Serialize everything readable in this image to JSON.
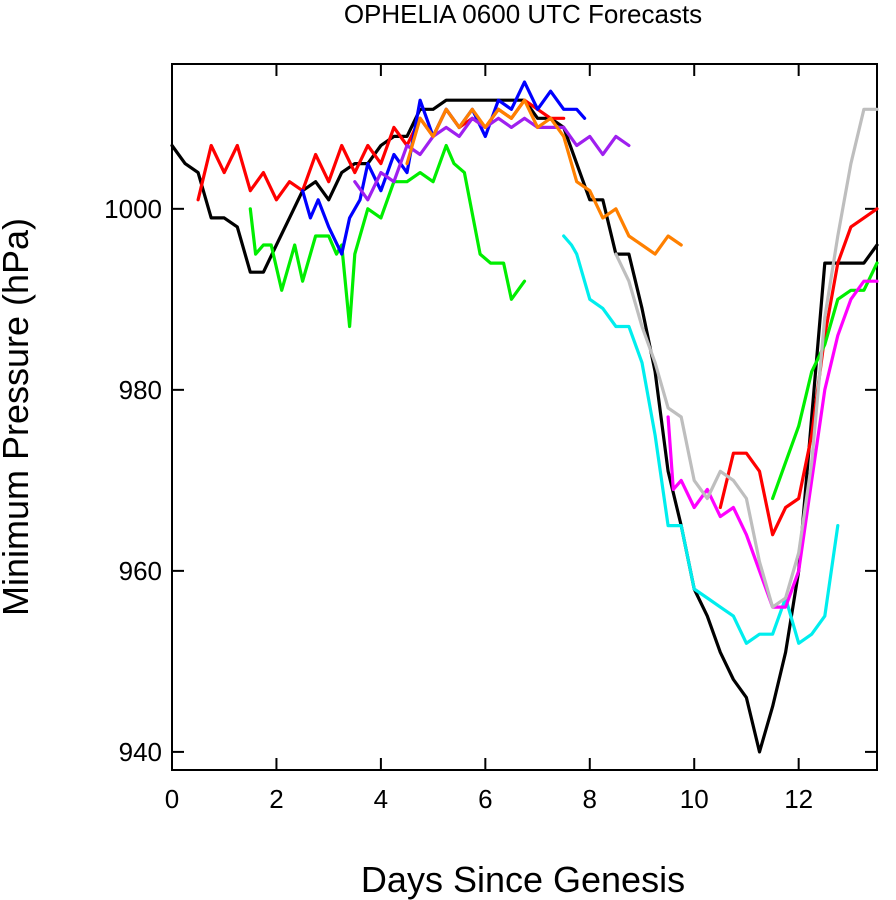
{
  "chart_data": {
    "type": "line",
    "title": "OPHELIA 0600 UTC Forecasts",
    "xlabel": "Days Since Genesis",
    "ylabel": "Minimum Pressure (hPa)",
    "xlim": [
      0,
      13.5
    ],
    "ylim": [
      938,
      1016
    ],
    "xticks": [
      0,
      2,
      4,
      6,
      8,
      10,
      12
    ],
    "yticks": [
      940,
      960,
      980,
      1000
    ],
    "grid": false,
    "legend": "none",
    "series": [
      {
        "color": "#000000",
        "points": [
          [
            0,
            1007
          ],
          [
            0.25,
            1005
          ],
          [
            0.5,
            1004
          ],
          [
            0.75,
            999
          ],
          [
            1,
            999
          ],
          [
            1.25,
            998
          ],
          [
            1.5,
            993
          ],
          [
            1.75,
            993
          ],
          [
            2,
            996
          ],
          [
            2.25,
            999
          ],
          [
            2.5,
            1002
          ],
          [
            2.75,
            1003
          ],
          [
            3,
            1001
          ],
          [
            3.25,
            1004
          ],
          [
            3.5,
            1005
          ],
          [
            3.75,
            1005
          ],
          [
            4,
            1007
          ],
          [
            4.25,
            1008
          ],
          [
            4.5,
            1008
          ],
          [
            4.75,
            1011
          ],
          [
            5,
            1011
          ],
          [
            5.25,
            1012
          ],
          [
            5.5,
            1012
          ],
          [
            5.75,
            1012
          ],
          [
            6,
            1012
          ],
          [
            6.25,
            1012
          ],
          [
            6.5,
            1012
          ],
          [
            6.75,
            1012
          ],
          [
            7,
            1010
          ],
          [
            7.25,
            1010
          ],
          [
            7.5,
            1009
          ],
          [
            7.75,
            1005
          ],
          [
            8,
            1001
          ],
          [
            8.25,
            1001
          ],
          [
            8.5,
            995
          ],
          [
            8.75,
            995
          ],
          [
            9,
            989
          ],
          [
            9.25,
            982
          ],
          [
            9.5,
            971
          ],
          [
            9.75,
            965
          ],
          [
            10,
            958
          ],
          [
            10.25,
            955
          ],
          [
            10.5,
            951
          ],
          [
            10.75,
            948
          ],
          [
            11,
            946
          ],
          [
            11.25,
            940
          ],
          [
            11.5,
            945
          ],
          [
            11.75,
            951
          ],
          [
            12,
            960
          ],
          [
            12.25,
            977
          ],
          [
            12.5,
            994
          ],
          [
            12.75,
            994
          ],
          [
            13,
            994
          ],
          [
            13.25,
            994
          ],
          [
            13.5,
            996
          ]
        ]
      },
      {
        "color": "#ff0000",
        "points": [
          [
            0.5,
            1001
          ],
          [
            0.75,
            1007
          ],
          [
            1,
            1004
          ],
          [
            1.25,
            1007
          ],
          [
            1.5,
            1002
          ],
          [
            1.75,
            1004
          ],
          [
            2,
            1001
          ],
          [
            2.25,
            1003
          ],
          [
            2.5,
            1002
          ],
          [
            2.75,
            1006
          ],
          [
            3,
            1003
          ],
          [
            3.25,
            1007
          ],
          [
            3.5,
            1004
          ],
          [
            3.75,
            1007
          ],
          [
            4,
            1005
          ],
          [
            4.25,
            1009
          ],
          [
            4.5,
            1007
          ],
          [
            4.75,
            1010
          ],
          [
            5,
            1008
          ],
          [
            5.25,
            1011
          ],
          [
            5.5,
            1009
          ],
          [
            5.75,
            1010
          ],
          [
            6,
            1009
          ],
          [
            6.25,
            1011
          ],
          [
            6.5,
            1010
          ],
          [
            6.75,
            1012
          ],
          [
            7,
            1011
          ],
          [
            7.25,
            1010
          ],
          [
            7.5,
            1010
          ]
        ]
      },
      {
        "color": "#ff0000",
        "points": [
          [
            10.5,
            967
          ],
          [
            10.75,
            973
          ],
          [
            11,
            973
          ],
          [
            11.25,
            971
          ],
          [
            11.5,
            964
          ],
          [
            11.75,
            967
          ],
          [
            12,
            968
          ],
          [
            12.25,
            975
          ],
          [
            12.5,
            986
          ],
          [
            12.75,
            994
          ],
          [
            13,
            998
          ],
          [
            13.25,
            999
          ],
          [
            13.5,
            1000
          ]
        ]
      },
      {
        "color": "#00ee00",
        "points": [
          [
            1.5,
            1000
          ],
          [
            1.6,
            995
          ],
          [
            1.75,
            996
          ],
          [
            1.9,
            996
          ],
          [
            2.1,
            991
          ],
          [
            2.35,
            996
          ],
          [
            2.5,
            992
          ],
          [
            2.75,
            997
          ],
          [
            3,
            997
          ],
          [
            3.15,
            995
          ],
          [
            3.25,
            996
          ],
          [
            3.4,
            987
          ],
          [
            3.5,
            995
          ],
          [
            3.75,
            1000
          ],
          [
            4,
            999
          ],
          [
            4.25,
            1003
          ],
          [
            4.5,
            1003
          ],
          [
            4.75,
            1004
          ],
          [
            5,
            1003
          ],
          [
            5.25,
            1007
          ],
          [
            5.4,
            1005
          ],
          [
            5.6,
            1004
          ],
          [
            5.9,
            995
          ],
          [
            6.1,
            994
          ],
          [
            6.35,
            994
          ],
          [
            6.5,
            990
          ],
          [
            6.75,
            992
          ]
        ]
      },
      {
        "color": "#00ee00",
        "points": [
          [
            11.5,
            968
          ],
          [
            11.75,
            972
          ],
          [
            12,
            976
          ],
          [
            12.25,
            982
          ],
          [
            12.5,
            985
          ],
          [
            12.75,
            990
          ],
          [
            13,
            991
          ],
          [
            13.25,
            991
          ],
          [
            13.5,
            994
          ]
        ]
      },
      {
        "color": "#0000ff",
        "points": [
          [
            2.5,
            1002
          ],
          [
            2.65,
            999
          ],
          [
            2.8,
            1001
          ],
          [
            3,
            998
          ],
          [
            3.25,
            995
          ],
          [
            3.4,
            999
          ],
          [
            3.6,
            1001
          ],
          [
            3.75,
            1005
          ],
          [
            4,
            1002
          ],
          [
            4.25,
            1006
          ],
          [
            4.5,
            1004
          ],
          [
            4.75,
            1012
          ],
          [
            5,
            1008
          ],
          [
            5.25,
            1011
          ],
          [
            5.5,
            1009
          ],
          [
            5.75,
            1011
          ],
          [
            6,
            1008
          ],
          [
            6.25,
            1012
          ],
          [
            6.5,
            1011
          ],
          [
            6.75,
            1014
          ],
          [
            7,
            1011
          ],
          [
            7.25,
            1013
          ],
          [
            7.5,
            1011
          ],
          [
            7.75,
            1011
          ],
          [
            7.9,
            1010
          ]
        ]
      },
      {
        "color": "#9f20ef",
        "points": [
          [
            3.5,
            1003
          ],
          [
            3.75,
            1001
          ],
          [
            4,
            1004
          ],
          [
            4.25,
            1003
          ],
          [
            4.5,
            1007
          ],
          [
            4.75,
            1006
          ],
          [
            5,
            1008
          ],
          [
            5.25,
            1009
          ],
          [
            5.5,
            1008
          ],
          [
            5.75,
            1010
          ],
          [
            6,
            1009
          ],
          [
            6.25,
            1010
          ],
          [
            6.5,
            1009
          ],
          [
            6.75,
            1010
          ],
          [
            7,
            1009
          ],
          [
            7.25,
            1009
          ],
          [
            7.5,
            1009
          ],
          [
            7.75,
            1007
          ],
          [
            8,
            1008
          ],
          [
            8.25,
            1006
          ],
          [
            8.5,
            1008
          ],
          [
            8.75,
            1007
          ]
        ]
      },
      {
        "color": "#ff8000",
        "points": [
          [
            4.5,
            1005
          ],
          [
            4.75,
            1010
          ],
          [
            5,
            1008
          ],
          [
            5.25,
            1011
          ],
          [
            5.5,
            1009
          ],
          [
            5.75,
            1011
          ],
          [
            6,
            1009
          ],
          [
            6.25,
            1011
          ],
          [
            6.5,
            1010
          ],
          [
            6.75,
            1012
          ],
          [
            7,
            1009
          ],
          [
            7.25,
            1010
          ],
          [
            7.5,
            1008
          ],
          [
            7.75,
            1003
          ],
          [
            8,
            1002
          ],
          [
            8.25,
            999
          ],
          [
            8.5,
            1000
          ],
          [
            8.75,
            997
          ],
          [
            9,
            996
          ],
          [
            9.25,
            995
          ],
          [
            9.5,
            997
          ],
          [
            9.75,
            996
          ]
        ]
      },
      {
        "color": "#00eeee",
        "points": [
          [
            7.5,
            997
          ],
          [
            7.65,
            996
          ],
          [
            7.75,
            995
          ],
          [
            8,
            990
          ],
          [
            8.25,
            989
          ],
          [
            8.5,
            987
          ],
          [
            8.75,
            987
          ],
          [
            9,
            983
          ],
          [
            9.25,
            975
          ],
          [
            9.5,
            965
          ],
          [
            9.75,
            965
          ],
          [
            10,
            958
          ],
          [
            10.25,
            957
          ],
          [
            10.5,
            956
          ],
          [
            10.75,
            955
          ],
          [
            11,
            952
          ],
          [
            11.25,
            953
          ],
          [
            11.5,
            953
          ],
          [
            11.75,
            957
          ],
          [
            12,
            952
          ],
          [
            12.25,
            953
          ],
          [
            12.5,
            955
          ],
          [
            12.75,
            965
          ]
        ]
      },
      {
        "color": "#ff00ff",
        "points": [
          [
            9.5,
            977
          ],
          [
            9.6,
            969
          ],
          [
            9.75,
            970
          ],
          [
            10,
            967
          ],
          [
            10.25,
            969
          ],
          [
            10.5,
            966
          ],
          [
            10.75,
            967
          ],
          [
            11,
            964
          ],
          [
            11.25,
            960
          ],
          [
            11.5,
            956
          ],
          [
            11.75,
            956
          ],
          [
            12,
            960
          ],
          [
            12.25,
            970
          ],
          [
            12.5,
            980
          ],
          [
            12.75,
            986
          ],
          [
            13,
            990
          ],
          [
            13.25,
            992
          ],
          [
            13.5,
            992
          ]
        ]
      },
      {
        "color": "#bebebe",
        "points": [
          [
            8.5,
            995
          ],
          [
            8.75,
            992
          ],
          [
            9,
            987
          ],
          [
            9.25,
            983
          ],
          [
            9.5,
            978
          ],
          [
            9.75,
            977
          ],
          [
            10,
            970
          ],
          [
            10.25,
            968
          ],
          [
            10.5,
            971
          ],
          [
            10.75,
            970
          ],
          [
            11,
            968
          ],
          [
            11.25,
            961
          ],
          [
            11.5,
            956
          ],
          [
            11.75,
            957
          ],
          [
            12,
            962
          ],
          [
            12.25,
            972
          ],
          [
            12.5,
            988
          ],
          [
            12.75,
            997
          ],
          [
            13,
            1005
          ],
          [
            13.25,
            1011
          ],
          [
            13.5,
            1011
          ]
        ]
      }
    ]
  }
}
